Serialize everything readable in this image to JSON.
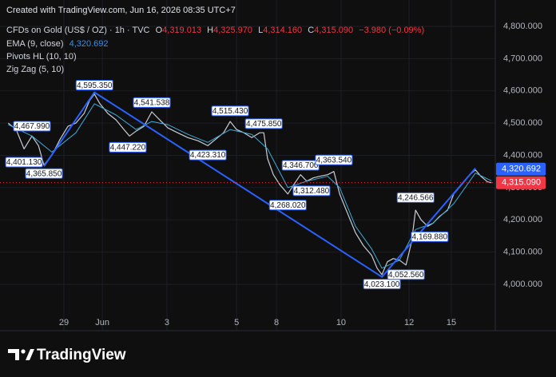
{
  "header": {
    "created": "Created with TradingView.com, Jun 16, 2026 08:35 UTC+7",
    "symbol": "CFDs on Gold (US$ / OZ) · 1h · TVC",
    "ohlc": [
      {
        "key": "O",
        "value": "4,319.013"
      },
      {
        "key": "H",
        "value": "4,325.970"
      },
      {
        "key": "L",
        "value": "4,314.160"
      },
      {
        "key": "C",
        "value": "4,315.090"
      }
    ],
    "change": "−3.980 (−0.09%)"
  },
  "footer": {
    "brand": "TradingView"
  },
  "chart_data": {
    "type": "line",
    "xlim": [
      -1.98,
      12.44
    ],
    "xticks": [
      {
        "value": -0.12,
        "label": "29"
      },
      {
        "value": 1.0,
        "label": "Jun"
      },
      {
        "value": 2.88,
        "label": "3"
      },
      {
        "value": 4.91,
        "label": "5"
      },
      {
        "value": 6.07,
        "label": "8"
      },
      {
        "value": 7.95,
        "label": "10"
      },
      {
        "value": 9.93,
        "label": "12"
      },
      {
        "value": 11.16,
        "label": "15"
      }
    ],
    "ylim": [
      3910.8,
      4881.7
    ],
    "yticks": [
      {
        "value": 4000,
        "label": "4,000.000"
      },
      {
        "value": 4100,
        "label": "4,100.000"
      },
      {
        "value": 4200,
        "label": "4,200.000"
      },
      {
        "value": 4300,
        "label": "4,300.000"
      },
      {
        "value": 4400,
        "label": "4,400.000"
      },
      {
        "value": 4500,
        "label": "4,500.000"
      },
      {
        "value": 4600,
        "label": "4,600.000"
      },
      {
        "value": 4700,
        "label": "4,700.000"
      },
      {
        "value": 4800,
        "label": "4,800.000"
      }
    ],
    "grid": true,
    "series": [
      {
        "color": "#c8ccd4",
        "x": [
          -1.74,
          -1.51,
          -1.28,
          -1.05,
          -0.86,
          -0.7,
          -0.47,
          -0.23,
          0,
          0.23,
          0.47,
          0.63,
          0.77,
          0.93,
          1.16,
          1.4,
          1.63,
          1.79,
          1.98,
          2.21,
          2.44,
          2.67,
          2.91,
          3.19,
          3.49,
          3.79,
          4.07,
          4.3,
          4.53,
          4.72,
          4.91,
          5.12,
          5.35,
          5.58,
          5.7,
          5.81,
          5.98,
          6.16,
          6.4,
          6.58,
          6.77,
          6.95,
          7.14,
          7.33,
          7.56,
          7.74,
          7.91,
          8.14,
          8.37,
          8.6,
          8.84,
          9.0,
          9.14,
          9.3,
          9.47,
          9.65,
          9.84,
          10.0,
          10.12,
          10.28,
          10.47,
          10.63,
          10.81,
          11.05,
          11.23,
          11.47,
          11.7,
          11.86,
          12.02,
          12.21,
          12.33
        ],
        "values": [
          4500,
          4480,
          4420,
          4460,
          4430,
          4370,
          4400,
          4450,
          4490,
          4500,
          4530,
          4570,
          4590,
          4560,
          4530,
          4510,
          4480,
          4460,
          4475,
          4490,
          4535,
          4510,
          4485,
          4470,
          4455,
          4445,
          4430,
          4450,
          4470,
          4505,
          4480,
          4470,
          4455,
          4470,
          4470,
          4390,
          4340,
          4310,
          4280,
          4310,
          4340,
          4320,
          4330,
          4335,
          4340,
          4350,
          4280,
          4220,
          4160,
          4120,
          4090,
          4050,
          4030,
          4070,
          4080,
          4075,
          4060,
          4130,
          4230,
          4200,
          4180,
          4190,
          4210,
          4230,
          4280,
          4310,
          4340,
          4355,
          4335,
          4318,
          4315
        ]
      },
      {
        "name": "EMA (9, close)",
        "color": "#3fa9d8",
        "x": [
          -1.74,
          -1.05,
          -0.47,
          0.23,
          0.77,
          1.4,
          1.98,
          2.44,
          2.91,
          3.49,
          4.07,
          4.72,
          5.35,
          5.81,
          6.4,
          6.95,
          7.56,
          7.91,
          8.37,
          8.84,
          9.14,
          9.65,
          10.12,
          10.63,
          11.23,
          11.86,
          12.33
        ],
        "values": [
          4495,
          4460,
          4410,
          4470,
          4560,
          4525,
          4480,
          4505,
          4495,
          4465,
          4440,
          4480,
          4465,
          4420,
          4300,
          4320,
          4335,
          4300,
          4180,
          4110,
          4050,
          4075,
          4170,
          4190,
          4250,
          4345,
          4321
        ]
      },
      {
        "name": "Zig Zag (5, 10)",
        "color": "#2962ff",
        "x": [
          -0.7,
          0.77,
          9.14,
          11.86
        ],
        "values": [
          4365.85,
          4595.35,
          4023.1,
          4360
        ]
      }
    ],
    "pivots": {
      "name": "Pivots HL (10, 10)",
      "highs": {
        "x": [
          -1.05,
          0.77,
          2.44,
          4.72,
          5.7,
          6.77,
          7.74,
          10.12
        ],
        "values": [
          4467.99,
          4595.35,
          4541.538,
          4515.43,
          4475.85,
          4346.7,
          4363.54,
          4246.566
        ],
        "value_labels": [
          "4,467.990",
          "4,595.350",
          "4,541.538",
          "4,515.430",
          "4,475.850",
          "4,346.700",
          "4,363.540",
          "4,246.566"
        ]
      },
      "lows": {
        "x": [
          -1.28,
          -0.7,
          1.74,
          4.07,
          6.4,
          7.09,
          9.14,
          9.84,
          10.53
        ],
        "values": [
          4401.13,
          4365.85,
          4447.22,
          4423.31,
          4268.02,
          4312.48,
          4023.1,
          4052.56,
          4169.88
        ],
        "value_labels": [
          "4,401.130",
          "4,365.850",
          "4,447.220",
          "4,423.310",
          "4,268.020",
          "4,312.480",
          "4,023.100",
          "4,052.560",
          "4,169.880"
        ]
      }
    },
    "ema_label": {
      "value": 4320.692,
      "label": "4,320.692",
      "color": "#2962ff"
    },
    "price_label": {
      "value": 4315.09,
      "label": "4,315.090",
      "color": "#f23645"
    }
  }
}
